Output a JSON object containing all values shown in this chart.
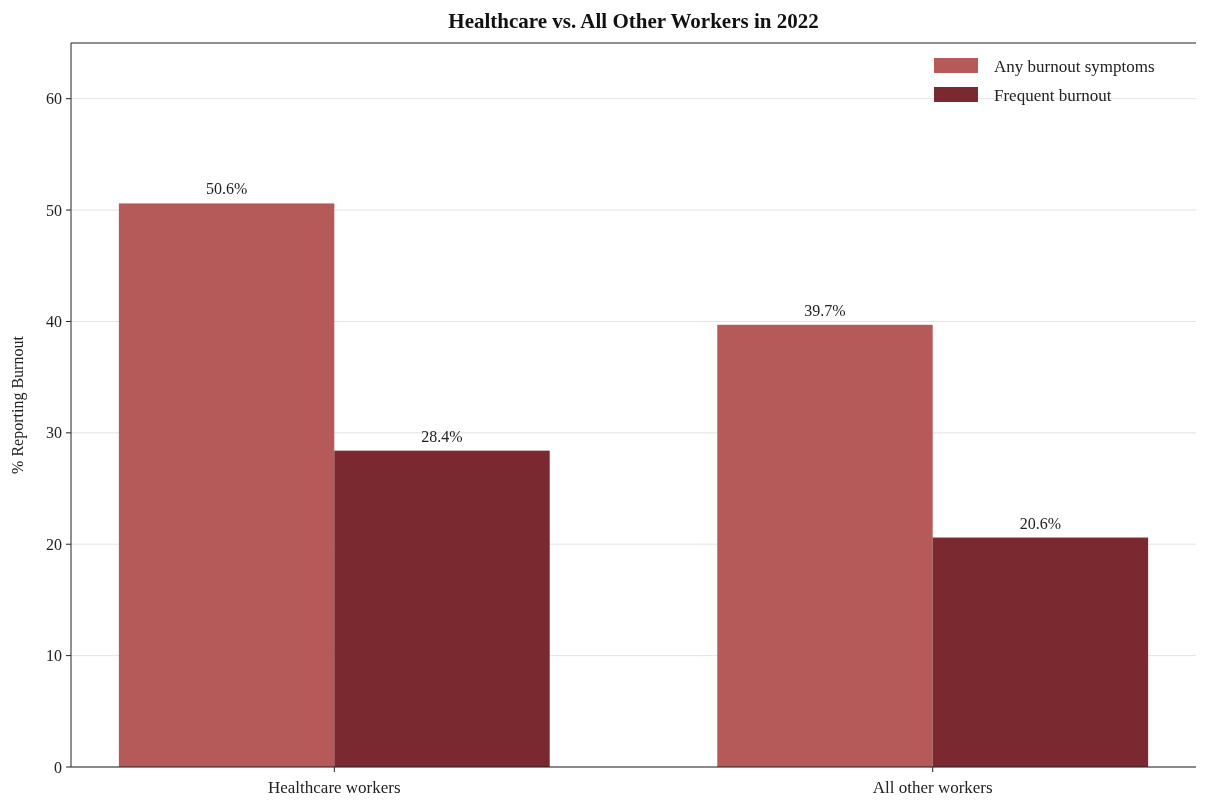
{
  "chart_data": {
    "type": "bar",
    "title": "Healthcare vs. All Other Workers in 2022",
    "ylabel": "% Reporting Burnout",
    "categories": [
      "Healthcare workers",
      "All other workers"
    ],
    "series": [
      {
        "name": "Any burnout symptoms",
        "color": "#b55a58",
        "values": [
          50.6,
          39.7
        ],
        "value_labels": [
          "50.6%",
          "39.7%"
        ]
      },
      {
        "name": "Frequent burnout",
        "color": "#7a2930",
        "values": [
          28.4,
          20.6
        ],
        "value_labels": [
          "28.4%",
          "20.6%"
        ]
      }
    ],
    "ylim": [
      0,
      65
    ],
    "yticks": [
      0,
      10,
      20,
      30,
      40,
      50,
      60
    ],
    "grid": "y",
    "legend": "top right"
  }
}
